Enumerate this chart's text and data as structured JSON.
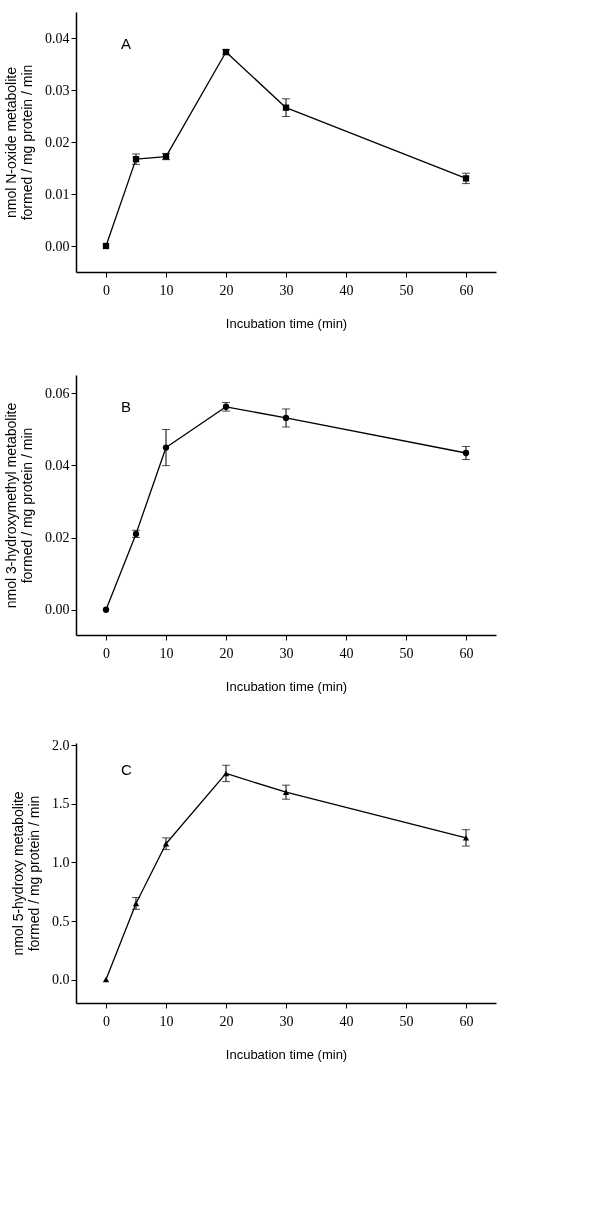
{
  "chart_data": [
    {
      "type": "line",
      "title": "A",
      "xlabel": "Incubation time (min)",
      "ylabel": "nmol N-oxide metabolite\nformed / mg protein / min",
      "x": [
        0,
        5,
        10,
        20,
        30,
        60
      ],
      "values": [
        0.0,
        0.0167,
        0.0172,
        0.0373,
        0.0266,
        0.013
      ],
      "errors": [
        null,
        0.001,
        0.0006,
        0.0005,
        0.0017,
        0.001
      ],
      "color": "#000000",
      "marker": "square",
      "xlim": [
        -5,
        65
      ],
      "xticks": [
        0,
        10,
        20,
        30,
        40,
        50,
        60
      ],
      "ylim": [
        -0.005,
        0.045
      ],
      "yticks": [
        {
          "value": 0,
          "label": "0.00"
        },
        0.01,
        0.02,
        0.03,
        0.04
      ],
      "grid": false
    },
    {
      "type": "line",
      "title": "B",
      "xlabel": "Incubation time (min)",
      "ylabel": "nmol 3-hydroxymethyl metabolite\nformed / mg protein / min",
      "x": [
        0,
        5,
        10,
        20,
        30,
        60
      ],
      "values": [
        0.0,
        0.021,
        0.0449,
        0.0562,
        0.0531,
        0.0434
      ],
      "errors": [
        null,
        0.001,
        0.005,
        0.0012,
        0.0025,
        0.0018
      ],
      "color": "#000000",
      "marker": "circle",
      "xlim": [
        -5,
        65
      ],
      "xticks": [
        0,
        10,
        20,
        30,
        40,
        50,
        60
      ],
      "ylim": [
        -0.007,
        0.065
      ],
      "yticks": [
        {
          "value": 0,
          "label": "0.00"
        },
        0.02,
        0.04,
        0.06
      ],
      "grid": false
    },
    {
      "type": "line",
      "title": "C",
      "xlabel": "Incubation time (min)",
      "ylabel": "nmol 5-hydroxy metabolite\nformed / mg protein / min",
      "x": [
        0,
        5,
        10,
        20,
        30,
        60
      ],
      "values": [
        0.0,
        0.65,
        1.16,
        1.76,
        1.6,
        1.21
      ],
      "errors": [
        null,
        0.05,
        0.05,
        0.07,
        0.06,
        0.07
      ],
      "color": "#000000",
      "marker": "triangle",
      "xlim": [
        -5,
        65
      ],
      "xticks": [
        0,
        10,
        20,
        30,
        40,
        50,
        60
      ],
      "ylim": [
        -0.2,
        2.02
      ],
      "yticks": [
        {
          "value": 0,
          "label": "0.0"
        },
        {
          "value": 0.5,
          "label": "0.5"
        },
        {
          "value": 1,
          "label": "1.0"
        },
        1.5,
        {
          "value": 2,
          "label": "2.0"
        }
      ],
      "grid": false
    }
  ]
}
